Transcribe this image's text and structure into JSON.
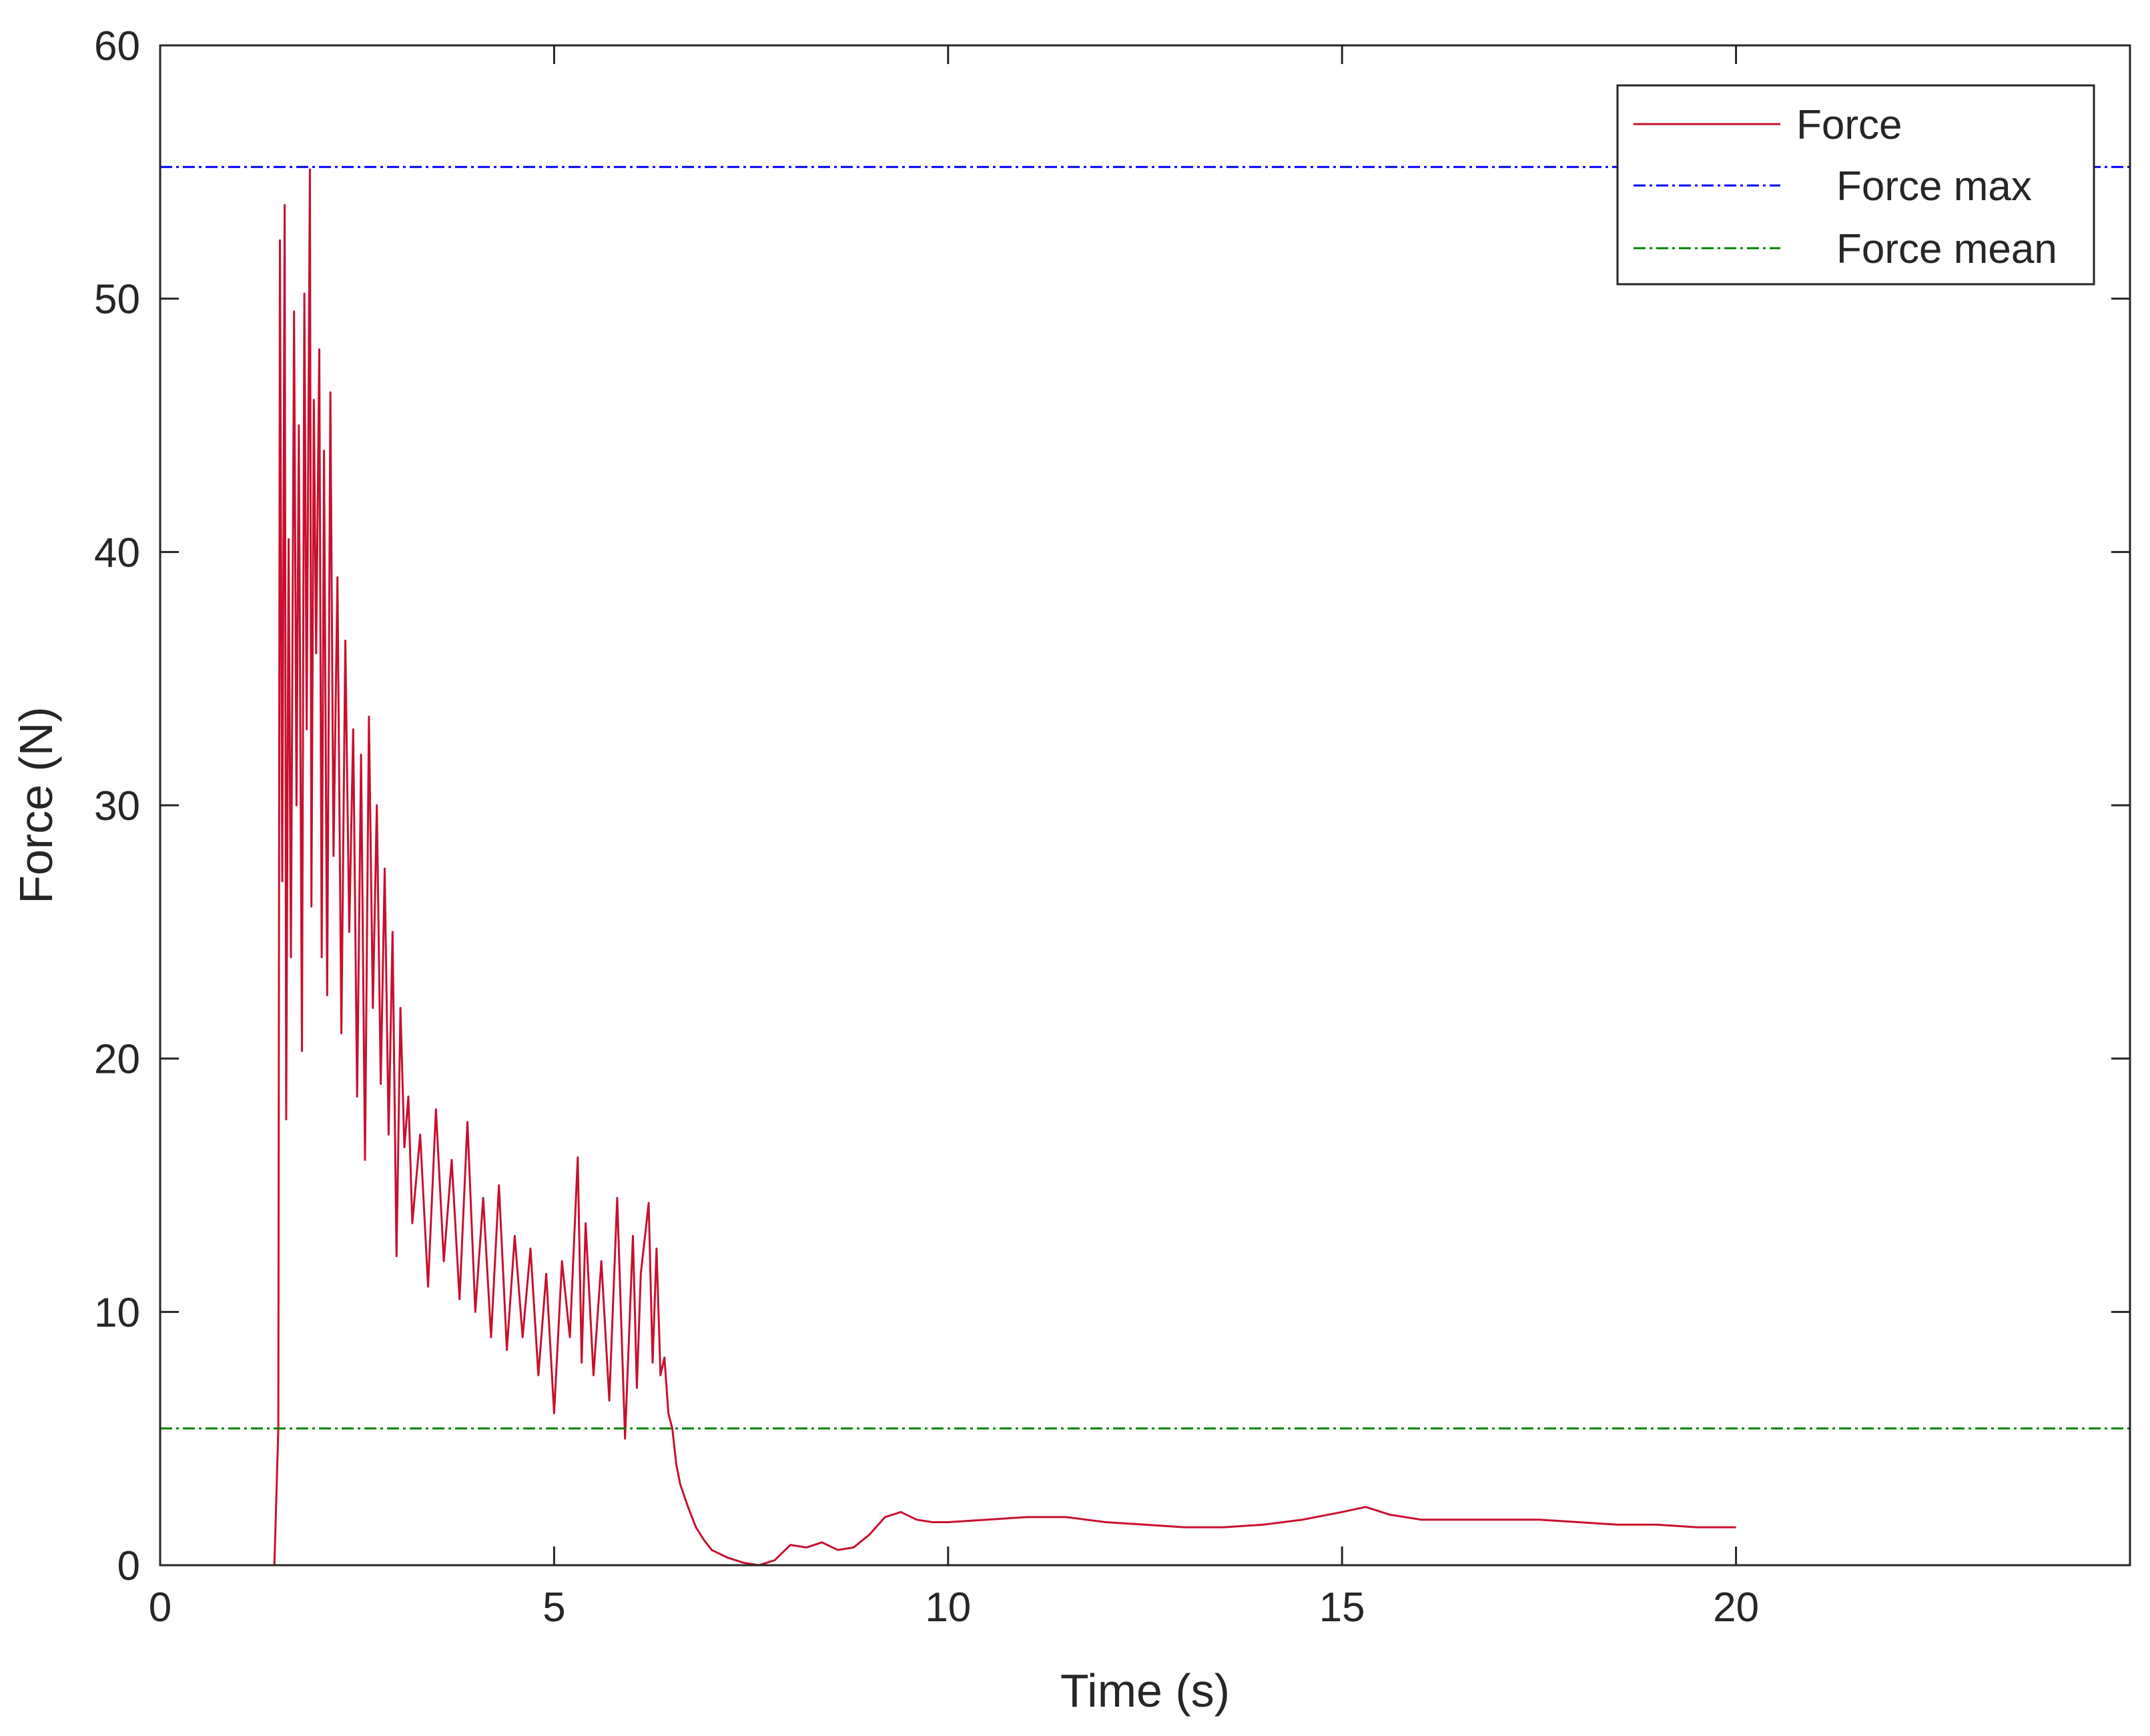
{
  "chart_data": {
    "type": "line",
    "title": "",
    "xlabel": "Time (s)",
    "ylabel": "Force (N)",
    "xlim": [
      0,
      25
    ],
    "ylim": [
      0,
      60
    ],
    "xticks": [
      0,
      5,
      10,
      15,
      20
    ],
    "yticks": [
      0,
      10,
      20,
      30,
      40,
      50,
      60
    ],
    "grid": false,
    "legend": {
      "placement": "top-right",
      "entries": [
        "Force",
        "Force max",
        "Force mean"
      ]
    },
    "series": [
      {
        "name": "Force",
        "style": "solid",
        "color": "#C8102E",
        "x": [
          0,
          1.45,
          1.5,
          1.52,
          1.55,
          1.58,
          1.6,
          1.63,
          1.66,
          1.7,
          1.73,
          1.76,
          1.8,
          1.83,
          1.86,
          1.9,
          1.92,
          1.95,
          1.98,
          2.02,
          2.05,
          2.08,
          2.12,
          2.16,
          2.2,
          2.25,
          2.3,
          2.35,
          2.4,
          2.45,
          2.5,
          2.55,
          2.6,
          2.65,
          2.7,
          2.75,
          2.8,
          2.85,
          2.9,
          2.95,
          3.0,
          3.05,
          3.1,
          3.15,
          3.2,
          3.3,
          3.4,
          3.5,
          3.6,
          3.7,
          3.8,
          3.9,
          4.0,
          4.1,
          4.2,
          4.3,
          4.4,
          4.5,
          4.6,
          4.7,
          4.8,
          4.9,
          5.0,
          5.1,
          5.2,
          5.3,
          5.35,
          5.4,
          5.5,
          5.6,
          5.7,
          5.8,
          5.9,
          6.0,
          6.05,
          6.1,
          6.2,
          6.25,
          6.3,
          6.35,
          6.4,
          6.45,
          6.5,
          6.55,
          6.6,
          6.7,
          6.8,
          6.9,
          7.0,
          7.2,
          7.4,
          7.6,
          7.8,
          8.0,
          8.2,
          8.4,
          8.6,
          8.8,
          9.0,
          9.2,
          9.4,
          9.6,
          9.8,
          10.0,
          10.5,
          11.0,
          11.5,
          12.0,
          12.5,
          13.0,
          13.5,
          14.0,
          14.5,
          15.0,
          15.3,
          15.6,
          16.0,
          16.5,
          17.0,
          17.5,
          18.0,
          18.5,
          19.0,
          19.5,
          20.0
        ],
        "y": [
          0,
          0,
          5.4,
          52.3,
          27.0,
          53.7,
          17.6,
          40.5,
          24.0,
          49.5,
          30.0,
          45.0,
          20.3,
          50.2,
          33.0,
          55.1,
          26.0,
          46.0,
          36.0,
          48.0,
          24.0,
          44.0,
          22.5,
          46.3,
          28.0,
          39.0,
          21.0,
          36.5,
          25.0,
          33.0,
          18.5,
          32.0,
          16.0,
          33.5,
          22.0,
          30.0,
          19.0,
          27.5,
          17.0,
          25.0,
          12.2,
          22.0,
          16.5,
          18.5,
          13.5,
          17.0,
          11.0,
          18.0,
          12.0,
          16.0,
          10.5,
          17.5,
          10.0,
          14.5,
          9.0,
          15.0,
          8.5,
          13.0,
          9.0,
          12.5,
          7.5,
          11.5,
          6.0,
          12.0,
          9.0,
          16.1,
          8.0,
          13.5,
          7.5,
          12.0,
          6.5,
          14.5,
          5.0,
          13.0,
          7.0,
          11.5,
          14.3,
          8.0,
          12.5,
          7.5,
          8.2,
          6.0,
          5.4,
          4.0,
          3.2,
          2.3,
          1.5,
          1.0,
          0.6,
          0.3,
          0.1,
          0.0,
          0.2,
          0.8,
          0.7,
          0.9,
          0.6,
          0.7,
          1.2,
          1.9,
          2.1,
          1.8,
          1.7,
          1.7,
          1.8,
          1.9,
          1.9,
          1.7,
          1.6,
          1.5,
          1.5,
          1.6,
          1.8,
          2.1,
          2.3,
          2.0,
          1.8,
          1.8,
          1.8,
          1.8,
          1.7,
          1.6,
          1.6,
          1.5,
          1.5
        ]
      },
      {
        "name": "Force max",
        "style": "dash-dot",
        "color": "#0000FF",
        "constant": 55.2
      },
      {
        "name": "Force mean",
        "style": "dash-dot",
        "color": "#008000",
        "constant": 5.4
      }
    ]
  }
}
